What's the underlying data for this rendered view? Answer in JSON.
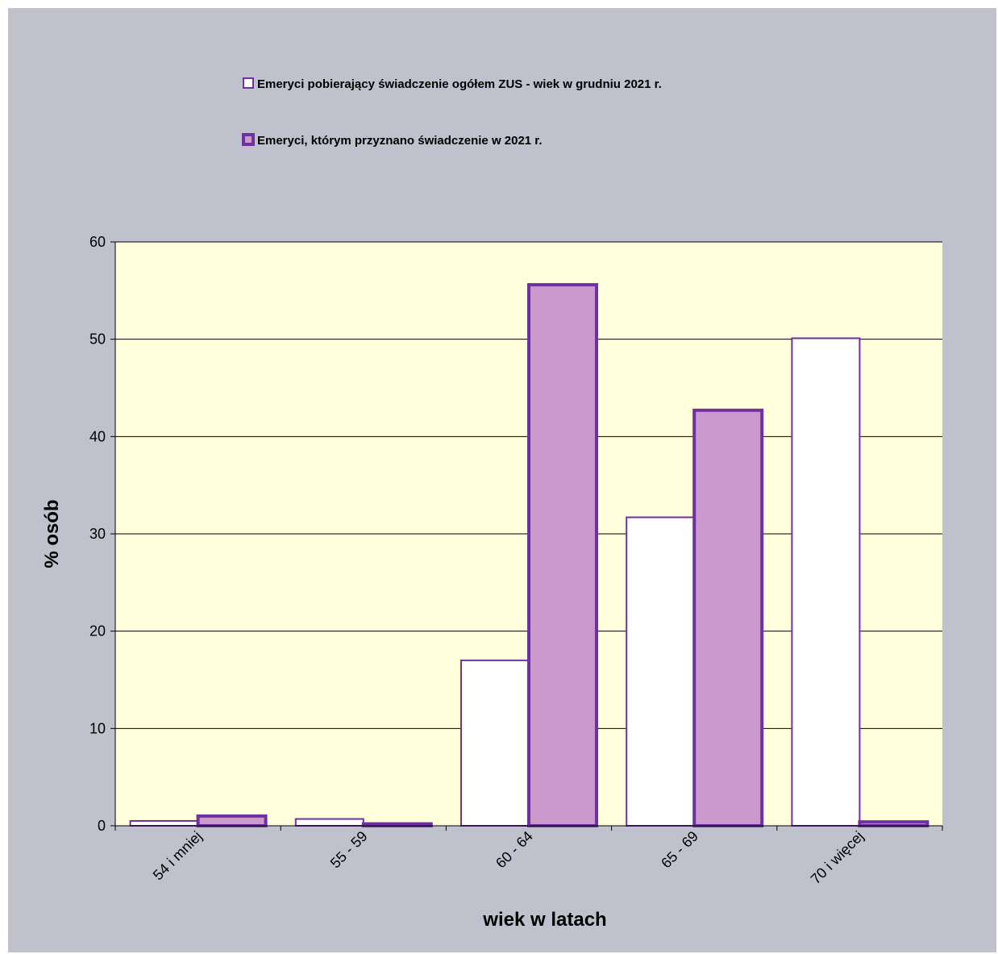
{
  "colors": {
    "frame_bg": "#bfc2cc",
    "plot_bg": "#ffffdc",
    "series1_fill": "#ffffff",
    "series1_stroke": "#7030a0",
    "series2_fill": "#cc99cc",
    "series2_stroke": "#7030a0",
    "gridline": "#000000"
  },
  "chart_data": {
    "type": "bar",
    "title": "",
    "xlabel": "wiek w latach",
    "ylabel": "% osób",
    "ylim": [
      0,
      60
    ],
    "yticks": [
      0,
      10,
      20,
      30,
      40,
      50,
      60
    ],
    "grid": true,
    "legend_position": "top",
    "categories": [
      "54 i mniej",
      "55 - 59",
      "60 - 64",
      "65 - 69",
      "70 i więcej"
    ],
    "series": [
      {
        "name": "Emeryci pobierający świadczenie ogółem ZUS - wiek w grudniu 2021 r.",
        "values": [
          0.5,
          0.7,
          17.0,
          31.7,
          50.1
        ]
      },
      {
        "name": "Emeryci, którym przyznano świadczenie w 2021 r.",
        "values": [
          1.0,
          0.2,
          55.6,
          42.7,
          0.4
        ]
      }
    ]
  }
}
